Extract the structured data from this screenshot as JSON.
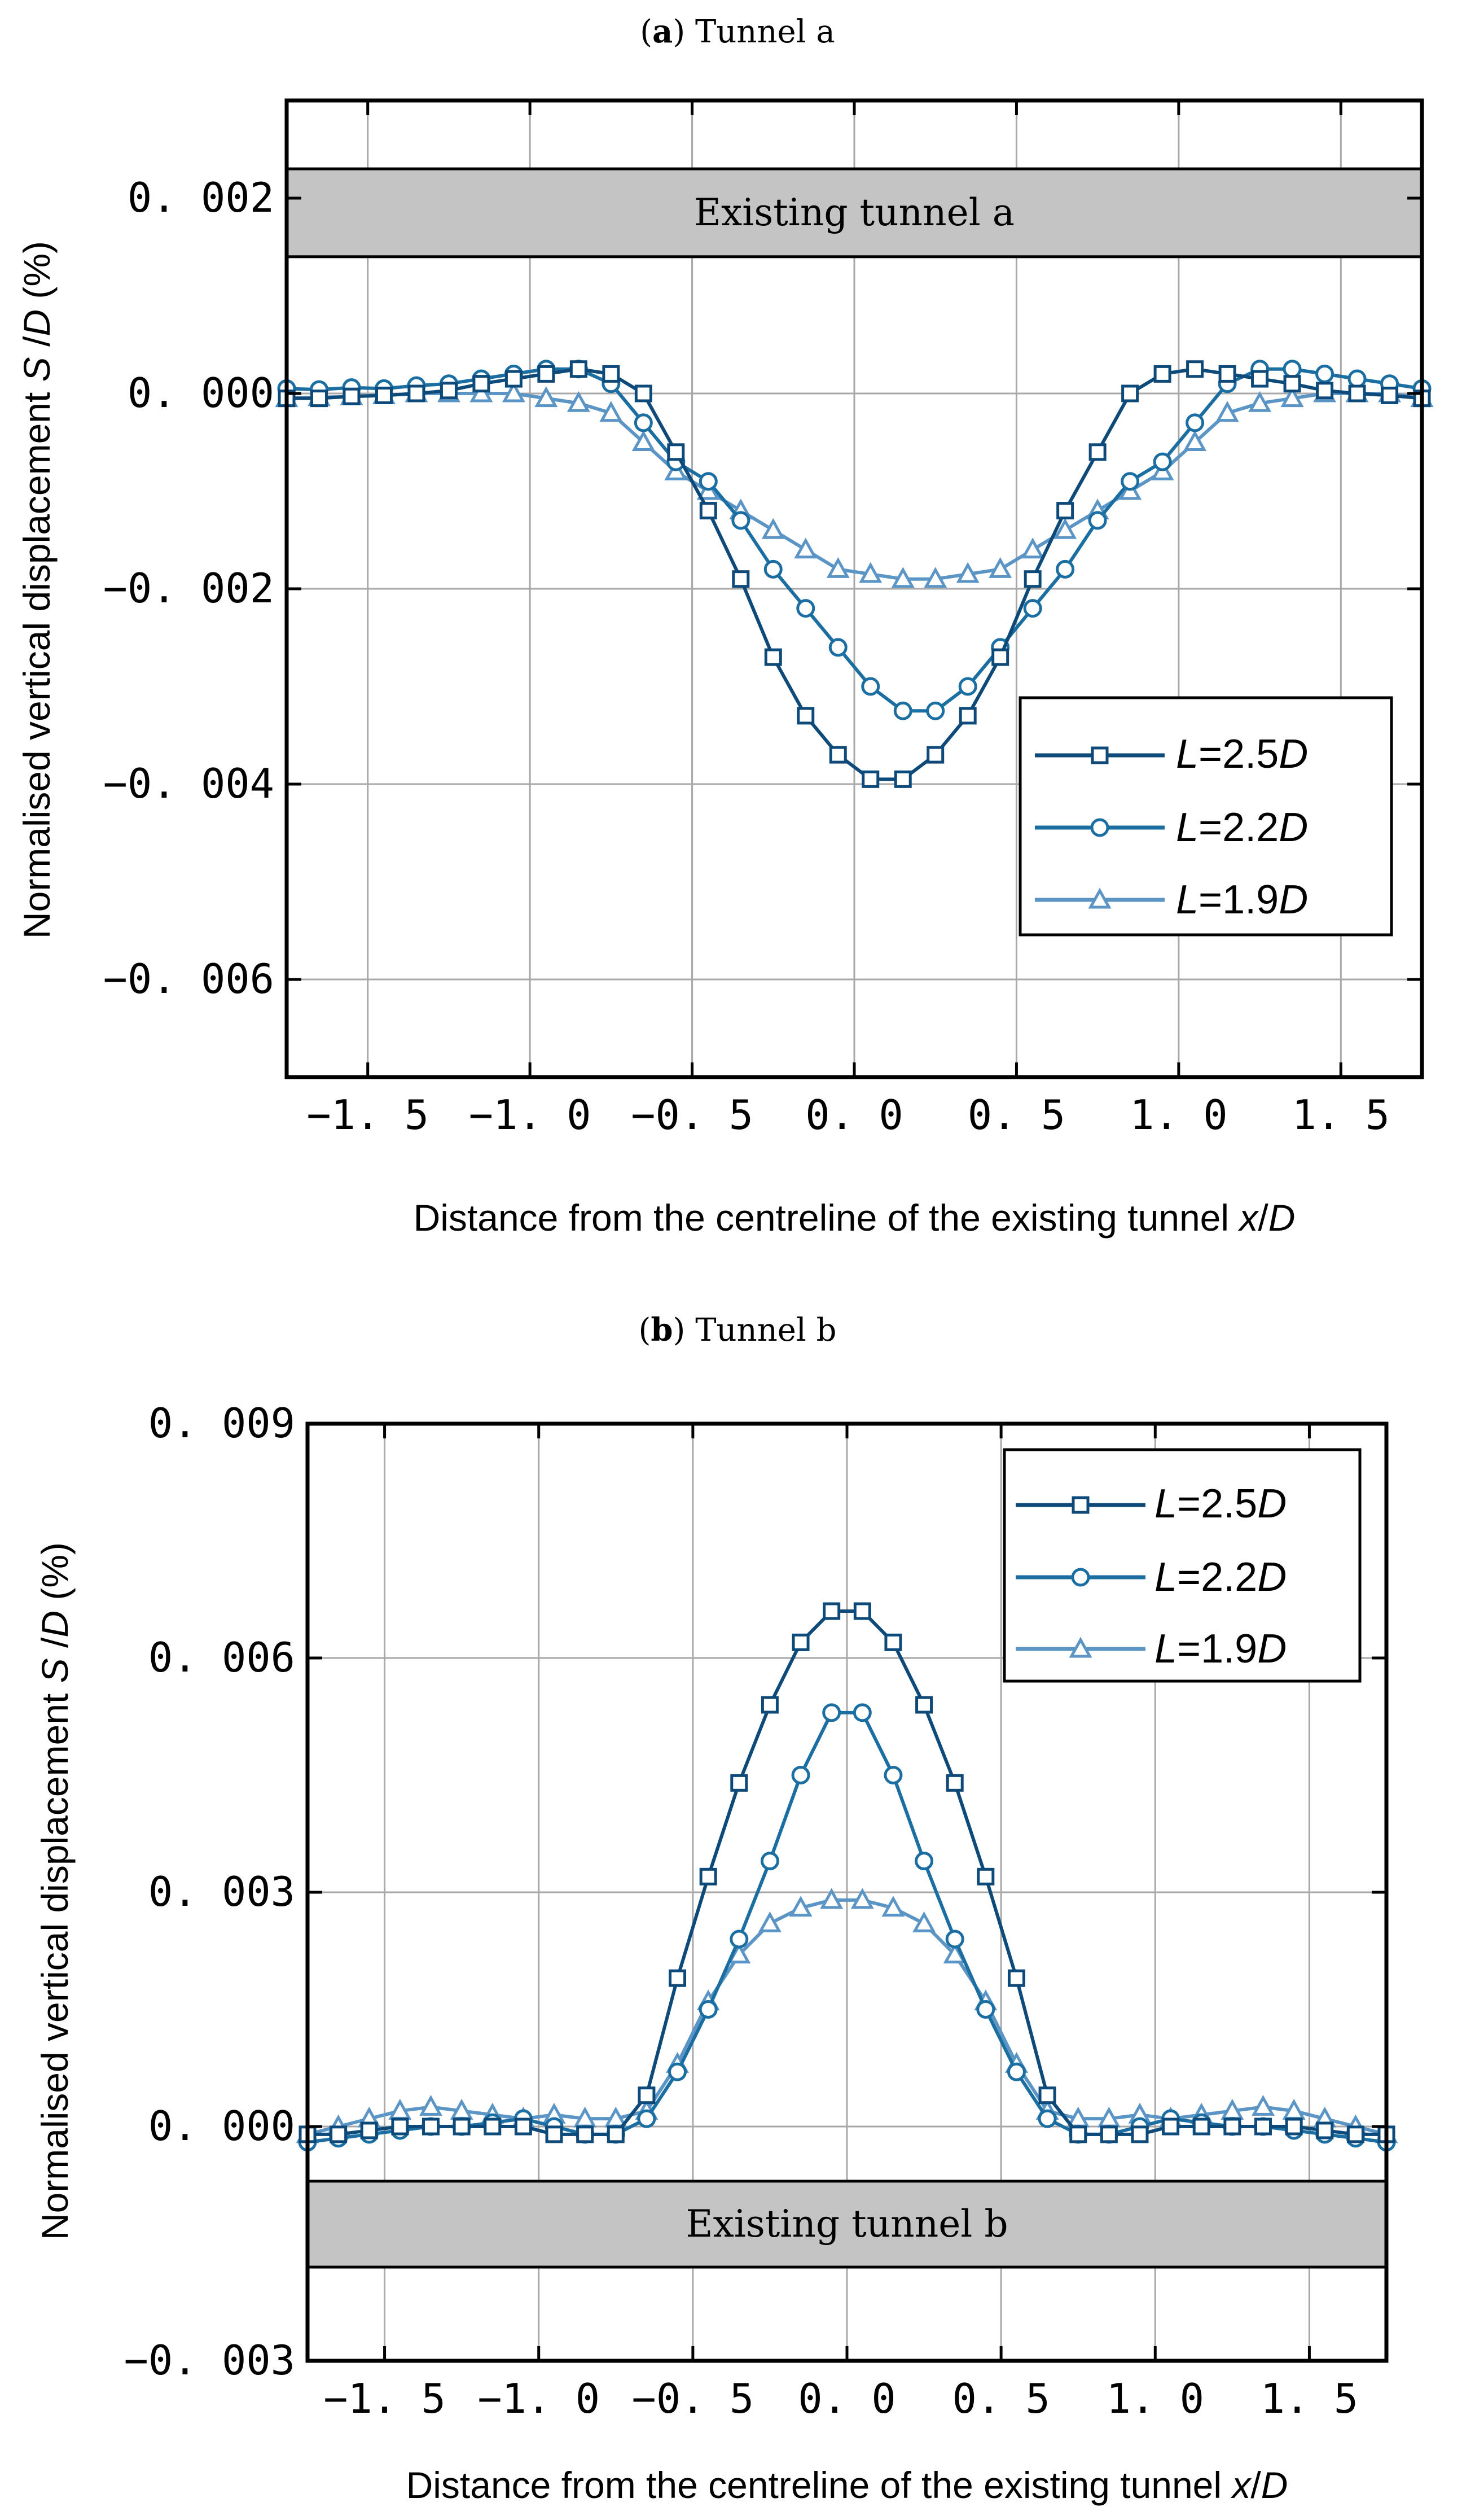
{
  "chart_data": [
    {
      "type": "line",
      "panel_label": "a",
      "title": "Tunnel a",
      "xlabel": "Distance from the centreline of the existing tunnel x/D",
      "ylabel": "Normalised vertical displacement S/D (%)",
      "xlim": [
        -1.75,
        1.75
      ],
      "ylim": [
        -0.007,
        0.003
      ],
      "xticks": [
        -1.5,
        -1.0,
        -0.5,
        0.0,
        0.5,
        1.0,
        1.5
      ],
      "xtick_labels": [
        "−1. 5",
        "−1. 0",
        "−0. 5",
        "0. 0",
        "0. 5",
        "1. 0",
        "1. 5"
      ],
      "yticks": [
        0.002,
        0.0,
        -0.002,
        -0.004,
        -0.006
      ],
      "ytick_labels": [
        "0. 002",
        "0. 000",
        "−0. 002",
        "−0. 004",
        "−0. 006"
      ],
      "grid": true,
      "tunnel_label": "Existing tunnel a",
      "tunnel_band": [
        0.0014,
        0.0023
      ],
      "legend_position": "center-right",
      "x": [
        -1.75,
        -1.65,
        -1.55,
        -1.45,
        -1.35,
        -1.25,
        -1.15,
        -1.05,
        -0.95,
        -0.85,
        -0.75,
        -0.65,
        -0.55,
        -0.45,
        -0.35,
        -0.25,
        -0.15,
        -0.05,
        0.05,
        0.15,
        0.25,
        0.35,
        0.45,
        0.55,
        0.65,
        0.75,
        0.85,
        0.95,
        1.05,
        1.15,
        1.25,
        1.35,
        1.45,
        1.55,
        1.65,
        1.75
      ],
      "series": [
        {
          "name": "L=2.5D",
          "label_pre": "L",
          "label_mid": "=2.5",
          "label_post": "D",
          "color": "#0d4a7a",
          "marker": "square",
          "values": [
            -5e-05,
            -5e-05,
            -3e-05,
            -2e-05,
            0.0,
            3e-05,
            0.0001,
            0.00015,
            0.0002,
            0.00025,
            0.0002,
            0.0,
            -0.0006,
            -0.0012,
            -0.0019,
            -0.0027,
            -0.0033,
            -0.0037,
            -0.00395,
            -0.00395,
            -0.0037,
            -0.0033,
            -0.0027,
            -0.0019,
            -0.0012,
            -0.0006,
            0.0,
            0.0002,
            0.00025,
            0.0002,
            0.00015,
            0.0001,
            3e-05,
            0.0,
            -2e-05,
            -5e-05
          ]
        },
        {
          "name": "L=2.2D",
          "label_pre": "L",
          "label_mid": "=2.2",
          "label_post": "D",
          "color": "#1b6ea2",
          "marker": "circle",
          "values": [
            5e-05,
            4e-05,
            6e-05,
            5e-05,
            8e-05,
            0.0001,
            0.00015,
            0.0002,
            0.00025,
            0.00025,
            0.0001,
            -0.0003,
            -0.0007,
            -0.0009,
            -0.0013,
            -0.0018,
            -0.0022,
            -0.0026,
            -0.003,
            -0.00325,
            -0.00325,
            -0.003,
            -0.0026,
            -0.0022,
            -0.0018,
            -0.0013,
            -0.0009,
            -0.0007,
            -0.0003,
            0.0001,
            0.00025,
            0.00025,
            0.0002,
            0.00015,
            0.0001,
            5e-05
          ]
        },
        {
          "name": "L=1.9D",
          "label_pre": "L",
          "label_mid": "=1.9",
          "label_post": "D",
          "color": "#5b95c6",
          "marker": "triangle",
          "values": [
            -5e-05,
            -4e-05,
            -3e-05,
            -2e-05,
            0.0,
            0.0,
            0.0,
            0.0,
            -5e-05,
            -0.0001,
            -0.0002,
            -0.0005,
            -0.0008,
            -0.001,
            -0.0012,
            -0.0014,
            -0.0016,
            -0.0018,
            -0.00185,
            -0.0019,
            -0.0019,
            -0.00185,
            -0.0018,
            -0.0016,
            -0.0014,
            -0.0012,
            -0.001,
            -0.0008,
            -0.0005,
            -0.0002,
            -0.0001,
            -5e-05,
            0.0,
            0.0,
            0.0,
            -5e-05
          ]
        }
      ]
    },
    {
      "type": "line",
      "panel_label": "b",
      "title": "Tunnel b",
      "xlabel": "Distance from the centreline of the existing tunnel x/D",
      "ylabel": "Normalised vertical displacement S/D (%)",
      "xlim": [
        -1.75,
        1.75
      ],
      "ylim": [
        -0.003,
        0.009
      ],
      "xticks": [
        -1.5,
        -1.0,
        -0.5,
        0.0,
        0.5,
        1.0,
        1.5
      ],
      "xtick_labels": [
        "−1. 5",
        "−1. 0",
        "−0. 5",
        "0. 0",
        "0. 5",
        "1. 0",
        "1. 5"
      ],
      "yticks": [
        0.009,
        0.006,
        0.003,
        0.0,
        -0.003
      ],
      "ytick_labels": [
        "0. 009",
        "0. 006",
        "0. 003",
        "0. 000",
        "−0. 003"
      ],
      "grid": true,
      "tunnel_label": "Existing tunnel b",
      "tunnel_band": [
        -0.0018,
        -0.0007
      ],
      "legend_position": "top-right",
      "x": [
        -1.75,
        -1.65,
        -1.55,
        -1.45,
        -1.35,
        -1.25,
        -1.15,
        -1.05,
        -0.95,
        -0.85,
        -0.75,
        -0.65,
        -0.55,
        -0.45,
        -0.35,
        -0.25,
        -0.15,
        -0.05,
        0.05,
        0.15,
        0.25,
        0.35,
        0.45,
        0.55,
        0.65,
        0.75,
        0.85,
        0.95,
        1.05,
        1.15,
        1.25,
        1.35,
        1.45,
        1.55,
        1.65,
        1.75
      ],
      "series": [
        {
          "name": "L=2.5D",
          "label_pre": "L",
          "label_mid": "=2.5",
          "label_post": "D",
          "color": "#0d4a7a",
          "marker": "square",
          "values": [
            -0.0001,
            -0.0001,
            -5e-05,
            0.0,
            0.0,
            0.0,
            0.0,
            0.0,
            -0.0001,
            -0.0001,
            -0.0001,
            0.0004,
            0.0019,
            0.0032,
            0.0044,
            0.0054,
            0.0062,
            0.0066,
            0.0066,
            0.0062,
            0.0054,
            0.0044,
            0.0032,
            0.0019,
            0.0004,
            -0.0001,
            -0.0001,
            -0.0001,
            0.0,
            0.0,
            0.0,
            0.0,
            0.0,
            -5e-05,
            -0.0001,
            -0.0001
          ]
        },
        {
          "name": "L=2.2D",
          "label_pre": "L",
          "label_mid": "=2.2",
          "label_post": "D",
          "color": "#1b6ea2",
          "marker": "circle",
          "values": [
            -0.0002,
            -0.00015,
            -0.0001,
            -5e-05,
            0.0,
            0.0,
            5e-05,
            0.0001,
            0.0,
            -0.0001,
            -0.0001,
            0.0001,
            0.0007,
            0.0015,
            0.0024,
            0.0034,
            0.0045,
            0.0053,
            0.0053,
            0.0045,
            0.0034,
            0.0024,
            0.0015,
            0.0007,
            0.0001,
            -0.0001,
            -0.0001,
            0.0,
            0.0001,
            5e-05,
            0.0,
            0.0,
            -5e-05,
            -0.0001,
            -0.00015,
            -0.0002
          ]
        },
        {
          "name": "L=1.9D",
          "label_pre": "L",
          "label_mid": "=1.9",
          "label_post": "D",
          "color": "#5b95c6",
          "marker": "triangle",
          "values": [
            -0.0001,
            0.0,
            0.0001,
            0.0002,
            0.00025,
            0.0002,
            0.00015,
            0.0001,
            0.00015,
            0.0001,
            0.0001,
            0.0002,
            0.0008,
            0.0016,
            0.0022,
            0.0026,
            0.0028,
            0.0029,
            0.0029,
            0.0028,
            0.0026,
            0.0022,
            0.0016,
            0.0008,
            0.0002,
            0.0001,
            0.0001,
            0.00015,
            0.0001,
            0.00015,
            0.0002,
            0.00025,
            0.0002,
            0.0001,
            0.0,
            -0.0001
          ]
        }
      ]
    }
  ]
}
